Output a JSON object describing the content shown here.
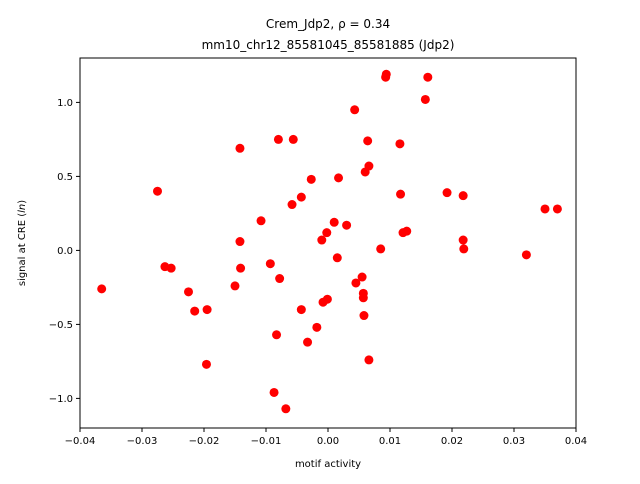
{
  "chart_data": {
    "type": "scatter",
    "title": [
      "Crem_Jdp2, ρ = 0.34",
      "mm10_chr12_85581045_85581885 (Jdp2)"
    ],
    "xlabel": "motif activity",
    "ylabel": "signal at CRE (ln)",
    "xlim": [
      -0.04,
      0.04
    ],
    "ylim": [
      -1.2,
      1.3
    ],
    "xticks": [
      -0.04,
      -0.03,
      -0.02,
      -0.01,
      0.0,
      0.01,
      0.02,
      0.03,
      0.04
    ],
    "xtick_labels": [
      "−0.04",
      "−0.03",
      "−0.02",
      "−0.01",
      "0.00",
      "0.01",
      "0.02",
      "0.03",
      "0.04"
    ],
    "yticks": [
      -1.0,
      -0.5,
      0.0,
      0.5,
      1.0
    ],
    "ytick_labels": [
      "−1.0",
      "−0.5",
      "0.0",
      "0.5",
      "1.0"
    ],
    "grid": false,
    "legend": "none",
    "marker_color": "#ff0000",
    "points": [
      {
        "x": -0.0365,
        "y": -0.26
      },
      {
        "x": -0.0275,
        "y": 0.4
      },
      {
        "x": -0.0263,
        "y": -0.11
      },
      {
        "x": -0.0253,
        "y": -0.12
      },
      {
        "x": -0.0225,
        "y": -0.28
      },
      {
        "x": -0.0215,
        "y": -0.41
      },
      {
        "x": -0.0195,
        "y": -0.4
      },
      {
        "x": -0.0196,
        "y": -0.77
      },
      {
        "x": -0.015,
        "y": -0.24
      },
      {
        "x": -0.0142,
        "y": 0.69
      },
      {
        "x": -0.0142,
        "y": 0.06
      },
      {
        "x": -0.0141,
        "y": -0.12
      },
      {
        "x": -0.0108,
        "y": 0.2
      },
      {
        "x": -0.0093,
        "y": -0.09
      },
      {
        "x": -0.0087,
        "y": -0.96
      },
      {
        "x": -0.0083,
        "y": -0.57
      },
      {
        "x": -0.008,
        "y": 0.75
      },
      {
        "x": -0.0078,
        "y": -0.19
      },
      {
        "x": -0.0068,
        "y": -1.07
      },
      {
        "x": -0.0058,
        "y": 0.31
      },
      {
        "x": -0.0056,
        "y": 0.75
      },
      {
        "x": -0.0043,
        "y": 0.36
      },
      {
        "x": -0.0043,
        "y": -0.4
      },
      {
        "x": -0.0033,
        "y": -0.62
      },
      {
        "x": -0.0027,
        "y": 0.48
      },
      {
        "x": -0.0018,
        "y": -0.52
      },
      {
        "x": -0.001,
        "y": 0.07
      },
      {
        "x": -0.0008,
        "y": -0.35
      },
      {
        "x": -0.0002,
        "y": 0.12
      },
      {
        "x": -0.0001,
        "y": -0.33
      },
      {
        "x": 0.001,
        "y": 0.19
      },
      {
        "x": 0.0015,
        "y": -0.05
      },
      {
        "x": 0.0017,
        "y": 0.49
      },
      {
        "x": 0.003,
        "y": 0.17
      },
      {
        "x": 0.0043,
        "y": 0.95
      },
      {
        "x": 0.0045,
        "y": -0.22
      },
      {
        "x": 0.0055,
        "y": -0.18
      },
      {
        "x": 0.0057,
        "y": -0.29
      },
      {
        "x": 0.0057,
        "y": -0.32
      },
      {
        "x": 0.0058,
        "y": -0.44
      },
      {
        "x": 0.006,
        "y": 0.53
      },
      {
        "x": 0.0064,
        "y": 0.74
      },
      {
        "x": 0.0066,
        "y": 0.57
      },
      {
        "x": 0.0066,
        "y": -0.74
      },
      {
        "x": 0.0085,
        "y": 0.01
      },
      {
        "x": 0.0093,
        "y": 1.17
      },
      {
        "x": 0.0094,
        "y": 1.19
      },
      {
        "x": 0.0116,
        "y": 0.72
      },
      {
        "x": 0.0117,
        "y": 0.38
      },
      {
        "x": 0.0121,
        "y": 0.12
      },
      {
        "x": 0.0127,
        "y": 0.13
      },
      {
        "x": 0.0157,
        "y": 1.02
      },
      {
        "x": 0.0161,
        "y": 1.17
      },
      {
        "x": 0.0192,
        "y": 0.39
      },
      {
        "x": 0.0218,
        "y": 0.37
      },
      {
        "x": 0.0218,
        "y": 0.07
      },
      {
        "x": 0.0219,
        "y": 0.01
      },
      {
        "x": 0.032,
        "y": -0.03
      },
      {
        "x": 0.035,
        "y": 0.28
      },
      {
        "x": 0.037,
        "y": 0.28
      }
    ]
  }
}
